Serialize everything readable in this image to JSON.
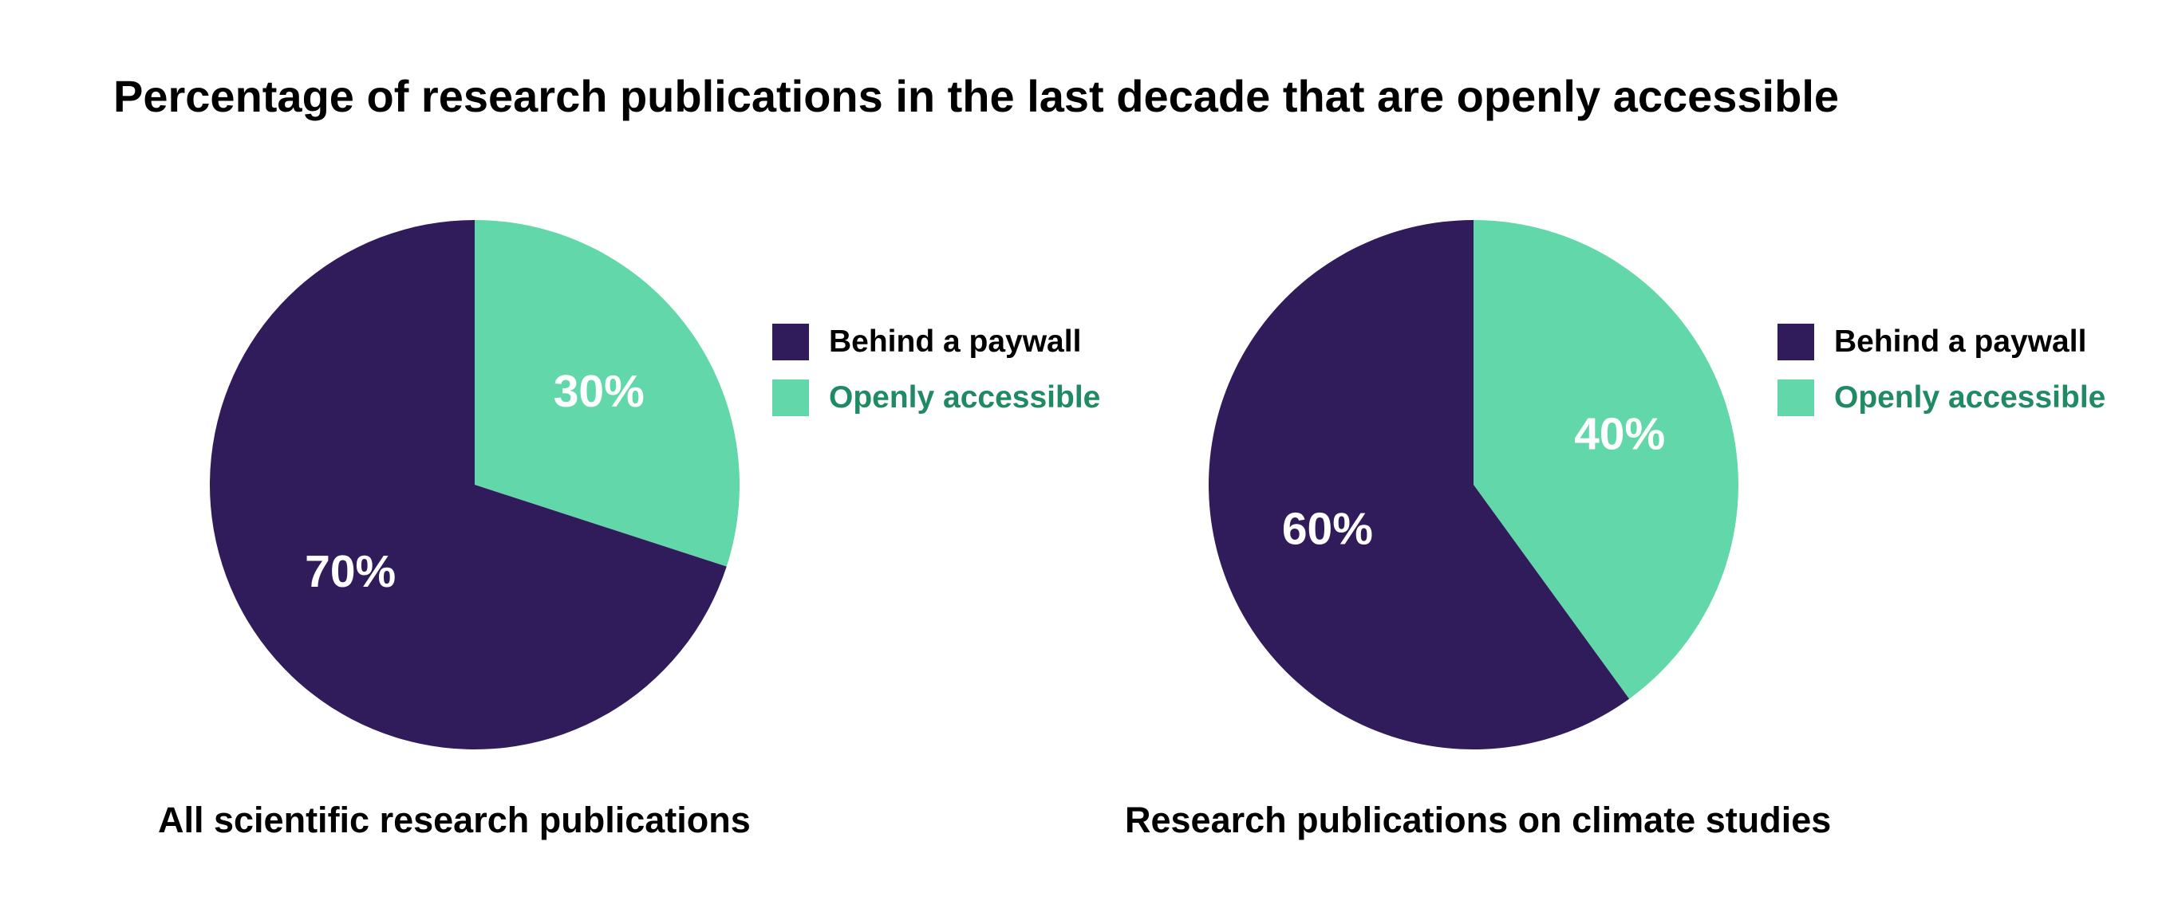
{
  "title": "Percentage of research publications in the last decade that are openly accessible",
  "colors": {
    "paywall": "#301c5a",
    "open": "#62d7aa",
    "open_text": "#1f8a63",
    "paywall_text": "#000000"
  },
  "chart_data": [
    {
      "type": "pie",
      "caption": "All scientific research publications",
      "slices": [
        {
          "name": "Openly accessible",
          "value": 30,
          "label": "30%"
        },
        {
          "name": "Behind a paywall",
          "value": 70,
          "label": "70%"
        }
      ],
      "legend": [
        "Behind a paywall",
        "Openly accessible"
      ],
      "legend_position": "right"
    },
    {
      "type": "pie",
      "caption": "Research publications on climate studies",
      "slices": [
        {
          "name": "Openly accessible",
          "value": 40,
          "label": "40%"
        },
        {
          "name": "Behind a paywall",
          "value": 60,
          "label": "60%"
        }
      ],
      "legend": [
        "Behind a paywall",
        "Openly accessible"
      ],
      "legend_position": "right"
    }
  ]
}
